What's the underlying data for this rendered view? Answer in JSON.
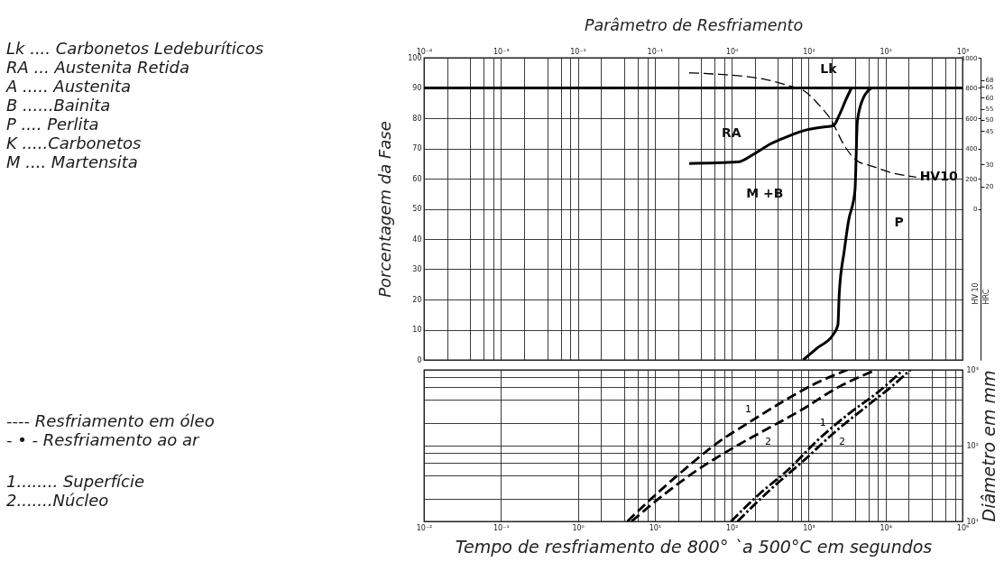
{
  "chart_data": [
    {
      "type": "line",
      "xlabel": "Parâmetro de Resfriamento",
      "ylabel": "Porcentagem da Fase",
      "y2label": "HV 10",
      "y3label": "HRC",
      "log": "x",
      "grid": true,
      "xlim": [
        0.0001,
        1000
      ],
      "xticks": [
        {
          "value": 0.0001,
          "label": "10⁻⁴"
        },
        {
          "value": 0.0002,
          "label": null
        },
        {
          "value": 0.0004,
          "label": null
        },
        {
          "value": 0.0006,
          "label": null
        },
        {
          "value": 0.0008,
          "label": null
        },
        {
          "value": 0.001,
          "label": "10⁻³"
        },
        {
          "value": 0.002,
          "label": null
        },
        {
          "value": 0.004,
          "label": null
        },
        {
          "value": 0.006,
          "label": null
        },
        {
          "value": 0.008,
          "label": null
        },
        {
          "value": 0.01,
          "label": "10⁻²"
        },
        {
          "value": 0.02,
          "label": null
        },
        {
          "value": 0.04,
          "label": null
        },
        {
          "value": 0.06,
          "label": null
        },
        {
          "value": 0.08,
          "label": null
        },
        {
          "value": 0.1,
          "label": "10⁻¹"
        },
        {
          "value": 0.2,
          "label": null
        },
        {
          "value": 0.4,
          "label": null
        },
        {
          "value": 0.6,
          "label": null
        },
        {
          "value": 0.8,
          "label": null
        },
        {
          "value": 1,
          "label": "10⁰"
        },
        {
          "value": 2,
          "label": null
        },
        {
          "value": 4,
          "label": null
        },
        {
          "value": 6,
          "label": null
        },
        {
          "value": 8,
          "label": null
        },
        {
          "value": 10,
          "label": "10¹"
        },
        {
          "value": 20,
          "label": null
        },
        {
          "value": 40,
          "label": null
        },
        {
          "value": 60,
          "label": null
        },
        {
          "value": 80,
          "label": null
        },
        {
          "value": 100,
          "label": "10²"
        },
        {
          "value": 200,
          "label": null
        },
        {
          "value": 400,
          "label": null
        },
        {
          "value": 600,
          "label": null
        },
        {
          "value": 800,
          "label": null
        },
        {
          "value": 1000,
          "label": "10³"
        }
      ],
      "ylim": [
        0,
        100
      ],
      "yticks": [
        0,
        10,
        20,
        30,
        40,
        50,
        60,
        70,
        80,
        90,
        100
      ],
      "y2lim": [
        -1000,
        1000
      ],
      "y2ticks": [
        0,
        200,
        400,
        600,
        800,
        1000
      ],
      "y3lim": [
        -58,
        78
      ],
      "y3ticks": [
        20,
        30,
        45,
        50,
        55,
        60,
        65,
        68
      ],
      "series": [
        {
          "color": "#000000",
          "line_style": "solid",
          "x": [
            0.0001,
            1000
          ],
          "values": [
            90,
            90
          ]
        },
        {
          "color": "#000000",
          "line_style": "solid",
          "x": [
            0.28,
            1.2,
            1.9,
            3.2,
            5.4,
            9,
            15,
            21,
            25,
            31,
            36
          ],
          "values": [
            65,
            65.5,
            68,
            71.5,
            74,
            76,
            77,
            77.5,
            81,
            86.5,
            90
          ]
        },
        {
          "color": "#000000",
          "line_style": "solid",
          "x": [
            8.5,
            13,
            21,
            24,
            25,
            29,
            33,
            40,
            43,
            51,
            66
          ],
          "values": [
            0,
            4,
            8.5,
            11.5,
            22,
            36,
            46,
            56,
            79,
            86.5,
            90
          ]
        },
        {
          "name": "HV10",
          "color": "#000000",
          "line_style": "dashed",
          "axis": "y2",
          "x": [
            0.28,
            0.69,
            2.5,
            5.5,
            9.1,
            13.5,
            19.5,
            29,
            42,
            69,
            117,
            250
          ],
          "values": [
            900,
            890,
            860,
            815,
            775,
            690,
            590,
            420,
            320,
            280,
            240,
            210
          ]
        }
      ],
      "annotations": [
        "Lk",
        "RA",
        "M +B",
        "P",
        "Lk .... Carbonetos Ledeburíticos",
        "RA ... Austenita Retida",
        "A ..... Austenita",
        "B ......Bainita",
        "P .... Perlita",
        "K .....Carbonetos",
        "M .... Martensita"
      ]
    },
    {
      "type": "line",
      "xlabel": "Tempo de resfriamento de 800° `a 500°C em segundos",
      "ylabel": "Diâmetro em mm",
      "log": "xy",
      "grid": true,
      "xlim": [
        0.01,
        100000
      ],
      "xticks": [
        {
          "value": 0.01,
          "label": "10⁻²"
        },
        {
          "value": 0.1,
          "label": "10⁻¹"
        },
        {
          "value": 1,
          "label": "10⁰"
        },
        {
          "value": 2,
          "label": null
        },
        {
          "value": 4,
          "label": null
        },
        {
          "value": 6,
          "label": null
        },
        {
          "value": 8,
          "label": null
        },
        {
          "value": 10,
          "label": "10¹"
        },
        {
          "value": 20,
          "label": null
        },
        {
          "value": 40,
          "label": null
        },
        {
          "value": 60,
          "label": null
        },
        {
          "value": 80,
          "label": null
        },
        {
          "value": 100,
          "label": "10²"
        },
        {
          "value": 200,
          "label": null
        },
        {
          "value": 400,
          "label": null
        },
        {
          "value": 600,
          "label": null
        },
        {
          "value": 800,
          "label": null
        },
        {
          "value": 1000,
          "label": "10³"
        },
        {
          "value": 2000,
          "label": null
        },
        {
          "value": 4000,
          "label": null
        },
        {
          "value": 6000,
          "label": null
        },
        {
          "value": 8000,
          "label": null
        },
        {
          "value": 10000,
          "label": "10⁴"
        },
        {
          "value": 20000,
          "label": null
        },
        {
          "value": 40000,
          "label": null
        },
        {
          "value": 60000,
          "label": null
        },
        {
          "value": 80000,
          "label": null
        },
        {
          "value": 100000,
          "label": "10⁵"
        }
      ],
      "ylim": [
        10,
        1000
      ],
      "yticks": [
        {
          "value": 10,
          "label": "10¹"
        },
        {
          "value": 20,
          "label": null
        },
        {
          "value": 40,
          "label": null
        },
        {
          "value": 60,
          "label": null
        },
        {
          "value": 80,
          "label": null
        },
        {
          "value": 100,
          "label": "10²"
        },
        {
          "value": 200,
          "label": null
        },
        {
          "value": 400,
          "label": null
        },
        {
          "value": 600,
          "label": null
        },
        {
          "value": 800,
          "label": null
        },
        {
          "value": 1000,
          "label": "10³"
        }
      ],
      "series": [
        {
          "name": "1",
          "color": "#000000",
          "line_style": "dashed",
          "x": [
            4.4,
            11,
            27,
            66,
            140,
            460,
            1300,
            3200
          ],
          "values": [
            10,
            24,
            53,
            110,
            180,
            380,
            680,
            1000
          ]
        },
        {
          "name": "2",
          "color": "#000000",
          "line_style": "dashed",
          "x": [
            5,
            12,
            35,
            98,
            240,
            780,
            2500,
            7500
          ],
          "values": [
            10,
            21,
            47,
            90,
            150,
            290,
            600,
            1000
          ]
        },
        {
          "name": "1",
          "color": "#000000",
          "line_style": "dashdot",
          "x": [
            98,
            240,
            530,
            1300,
            3200,
            8200,
            17000
          ],
          "values": [
            10,
            24,
            47,
            117,
            255,
            520,
            1000
          ]
        },
        {
          "name": "2",
          "color": "#000000",
          "line_style": "dashdot",
          "x": [
            119,
            314,
            885,
            2190,
            6170,
            11800,
            21100
          ],
          "values": [
            10,
            26,
            65,
            151,
            353,
            595,
            1000
          ]
        }
      ],
      "annotations": [
        "---- Resfriamento em óleo",
        "- • - Resfriamento ao ar",
        "1........ Superfície",
        "2.......Núcleo"
      ]
    }
  ]
}
